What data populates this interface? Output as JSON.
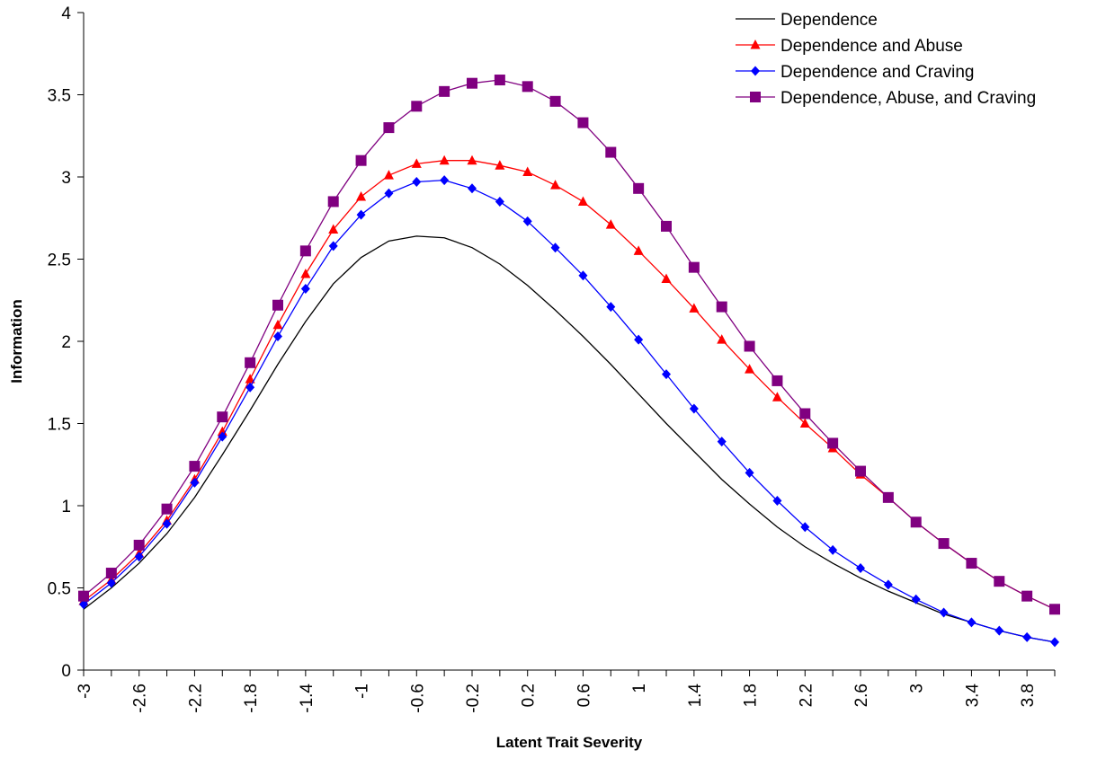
{
  "chart_data": {
    "type": "line",
    "xlabel": "Latent Trait Severity",
    "ylabel": "Information",
    "xlim": [
      -3,
      4
    ],
    "ylim": [
      0,
      4
    ],
    "x": [
      -3,
      -2.8,
      -2.6,
      -2.4,
      -2.2,
      -2,
      -1.8,
      -1.6,
      -1.4,
      -1.2,
      -1,
      -0.8,
      -0.6,
      -0.4,
      -0.2,
      0,
      0.2,
      0.4,
      0.6,
      0.8,
      1,
      1.2,
      1.4,
      1.6,
      1.8,
      2,
      2.2,
      2.4,
      2.6,
      2.8,
      3,
      3.2,
      3.4,
      3.6,
      3.8,
      4
    ],
    "x_tick_labels": [
      "-3",
      "-2.6",
      "-2.2",
      "-1.8",
      "-1.4",
      "-1",
      "-0.6",
      "-0.2",
      "0.2",
      "0.6",
      "1",
      "1.4",
      "1.8",
      "2.2",
      "2.6",
      "3",
      "3.4",
      "3.8"
    ],
    "y_ticks": [
      0,
      0.5,
      1,
      1.5,
      2,
      2.5,
      3,
      3.5,
      4
    ],
    "y_tick_labels": [
      "0",
      "0.5",
      "1",
      "1.5",
      "2",
      "2.5",
      "3",
      "3.5",
      "4"
    ],
    "grid": false,
    "legend_position": "top-right",
    "series": [
      {
        "name": "Dependence",
        "color": "#000000",
        "marker": "none",
        "values": [
          0.37,
          0.5,
          0.65,
          0.83,
          1.05,
          1.31,
          1.58,
          1.86,
          2.12,
          2.35,
          2.51,
          2.61,
          2.64,
          2.63,
          2.57,
          2.47,
          2.34,
          2.19,
          2.03,
          1.86,
          1.68,
          1.5,
          1.33,
          1.16,
          1.01,
          0.87,
          0.75,
          0.65,
          0.56,
          0.48,
          0.41,
          0.34,
          0.29,
          0.24,
          0.2,
          0.17
        ]
      },
      {
        "name": "Dependence and Abuse",
        "color": "#ff0000",
        "marker": "triangle",
        "values": [
          0.42,
          0.55,
          0.71,
          0.91,
          1.16,
          1.45,
          1.77,
          2.1,
          2.41,
          2.68,
          2.88,
          3.01,
          3.08,
          3.1,
          3.1,
          3.07,
          3.03,
          2.95,
          2.85,
          2.71,
          2.55,
          2.38,
          2.2,
          2.01,
          1.83,
          1.66,
          1.5,
          1.35,
          1.19,
          1.05,
          0.9,
          0.77,
          0.65,
          0.54,
          0.45,
          0.37
        ]
      },
      {
        "name": "Dependence and Craving",
        "color": "#0000ff",
        "marker": "diamond",
        "values": [
          0.4,
          0.53,
          0.69,
          0.89,
          1.14,
          1.42,
          1.72,
          2.03,
          2.32,
          2.58,
          2.77,
          2.9,
          2.97,
          2.98,
          2.93,
          2.85,
          2.73,
          2.57,
          2.4,
          2.21,
          2.01,
          1.8,
          1.59,
          1.39,
          1.2,
          1.03,
          0.87,
          0.73,
          0.62,
          0.52,
          0.43,
          0.35,
          0.29,
          0.24,
          0.2,
          0.17
        ]
      },
      {
        "name": "Dependence, Abuse, and Craving",
        "color": "#800080",
        "marker": "square",
        "values": [
          0.45,
          0.59,
          0.76,
          0.98,
          1.24,
          1.54,
          1.87,
          2.22,
          2.55,
          2.85,
          3.1,
          3.3,
          3.43,
          3.52,
          3.57,
          3.59,
          3.55,
          3.46,
          3.33,
          3.15,
          2.93,
          2.7,
          2.45,
          2.21,
          1.97,
          1.76,
          1.56,
          1.38,
          1.21,
          1.05,
          0.9,
          0.77,
          0.65,
          0.54,
          0.45,
          0.37
        ]
      }
    ]
  }
}
